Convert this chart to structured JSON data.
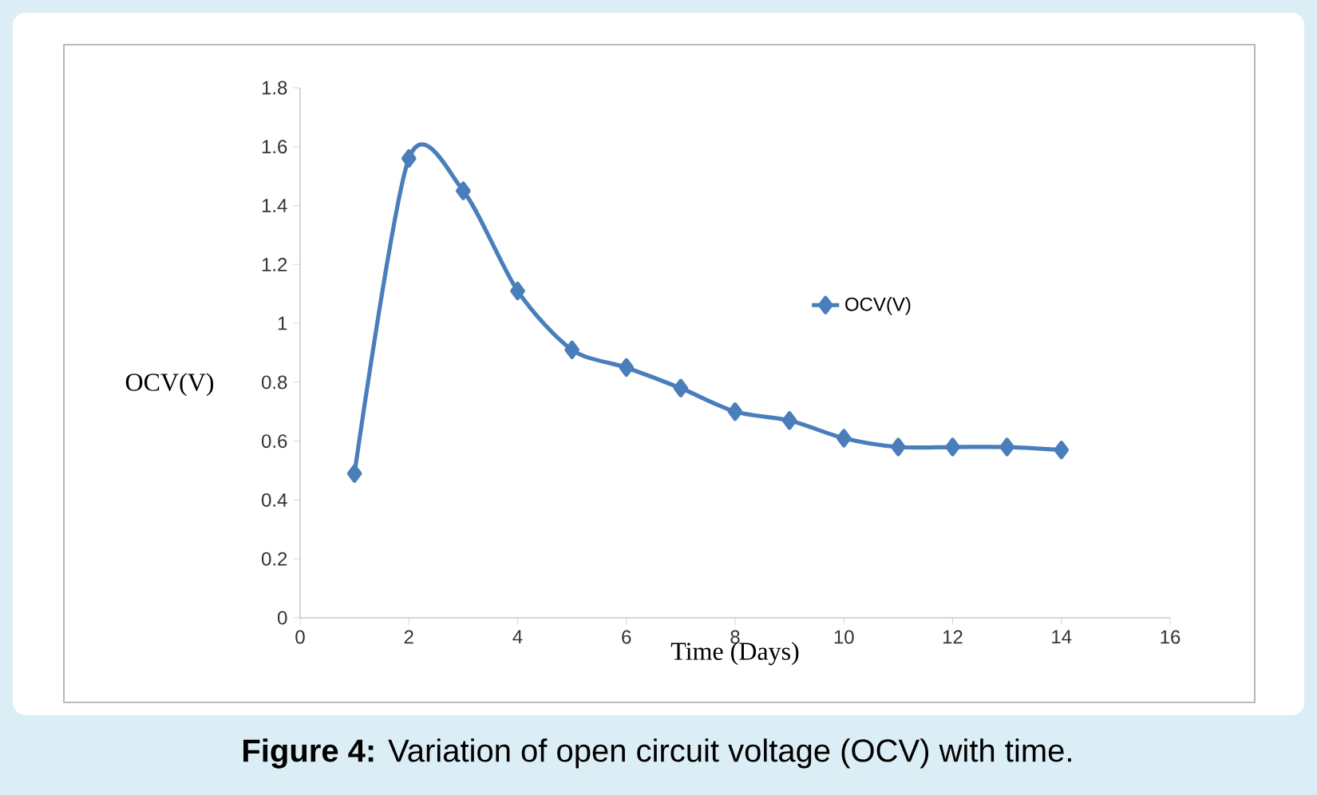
{
  "chart_data": {
    "type": "line",
    "xlabel": "Time  (Days)",
    "ylabel": "OCV(V)",
    "annotations": [
      "**Figure 4:** Variation of open circuit voltage (OCV) with time."
    ],
    "x": [
      1,
      2,
      3,
      4,
      5,
      6,
      7,
      8,
      9,
      10,
      11,
      12,
      13,
      14
    ],
    "series": [
      {
        "name": "OCV(V)",
        "color": "#4a7ebb",
        "values": [
          0.49,
          1.56,
          1.45,
          1.11,
          0.91,
          0.85,
          0.78,
          0.7,
          0.67,
          0.61,
          0.58,
          0.58,
          0.58,
          0.57
        ]
      }
    ],
    "xlim": [
      0,
      16
    ],
    "xticks": [
      0,
      2,
      4,
      6,
      8,
      10,
      12,
      14,
      16
    ],
    "ylim": [
      0,
      1.8
    ],
    "yticks": [
      0,
      {
        "value": 0.2,
        "label": "0.2"
      },
      {
        "value": 0.4,
        "label": "0.4"
      },
      {
        "value": 0.6,
        "label": "0.6"
      },
      {
        "value": 0.8,
        "label": "0.8"
      },
      1,
      {
        "value": 1.2,
        "label": "1.2"
      },
      {
        "value": 1.4,
        "label": "1.4"
      },
      {
        "value": 1.6,
        "label": "1.6"
      },
      {
        "value": 1.8,
        "label": "1.8"
      }
    ],
    "grid": false,
    "legend": "right",
    "marker": "diamond",
    "line_style": "solid"
  }
}
